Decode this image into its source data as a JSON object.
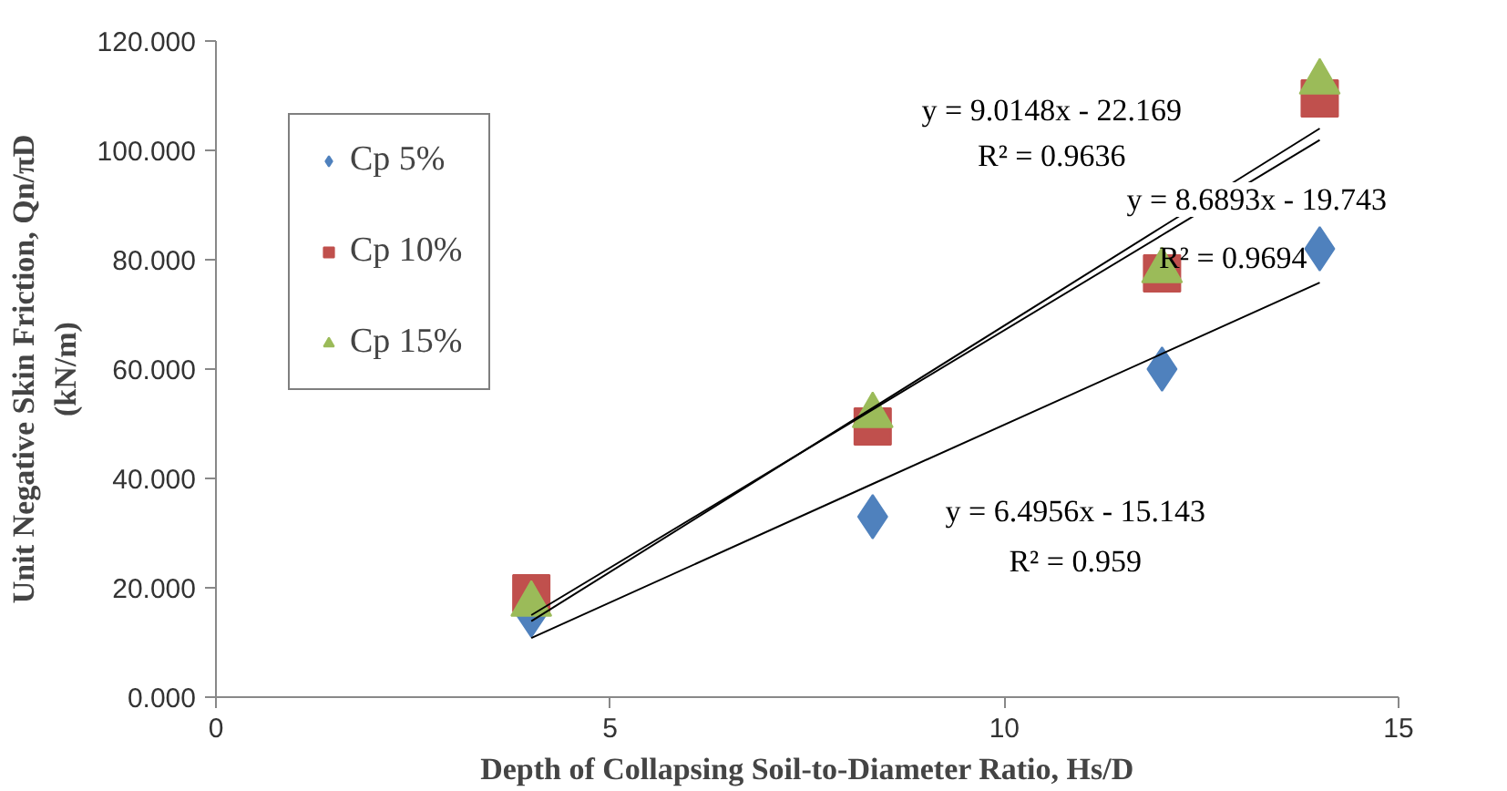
{
  "chart_data": {
    "type": "scatter",
    "xlabel": "Depth of Collapsing Soil-to-Diameter Ratio, Hs/D",
    "ylabel": "Unit Negative Skin Friction, Qn/πD\n(kN/m)",
    "x": [
      4,
      8.33,
      12,
      14
    ],
    "series": [
      {
        "name": "Cp 5%",
        "color": "#4f81bd",
        "marker": "diamond",
        "values": [
          15,
          33,
          60,
          82
        ]
      },
      {
        "name": "Cp 10%",
        "color": "#c0504d",
        "marker": "square",
        "values": [
          19,
          49.5,
          77.5,
          109.5
        ]
      },
      {
        "name": "Cp 15%",
        "color": "#9bbb59",
        "marker": "triangle",
        "values": [
          17,
          51.5,
          78,
          112.5
        ]
      },
      {
        "type": "line",
        "color": "#000000",
        "values": [
          10.8,
          39.0,
          62.8,
          75.8
        ]
      },
      {
        "type": "line",
        "color": "#000000",
        "values": [
          15.0,
          52.6,
          84.5,
          101.9
        ]
      },
      {
        "type": "line",
        "color": "#000000",
        "values": [
          13.9,
          52.9,
          86.0,
          104.0
        ]
      }
    ],
    "annotations": [
      "y = 9.0148x - 22.169",
      "R² = 0.9636",
      "y = 8.6893x - 19.743",
      "R² = 0.9694",
      "y = 6.4956x - 15.143",
      "R² = 0.959"
    ],
    "xlim": [
      0,
      15
    ],
    "xticks": [
      0,
      5,
      10,
      15
    ],
    "ylim": [
      0,
      120
    ],
    "yticks": [
      {
        "value": 0,
        "label": "0.000"
      },
      {
        "value": 20,
        "label": "20.000"
      },
      {
        "value": 40,
        "label": "40.000"
      },
      {
        "value": 60,
        "label": "60.000"
      },
      {
        "value": 80,
        "label": "80.000"
      },
      {
        "value": 100,
        "label": "100.000"
      },
      {
        "value": 120,
        "label": "120.000"
      }
    ],
    "grid": false,
    "legend": "top left"
  }
}
